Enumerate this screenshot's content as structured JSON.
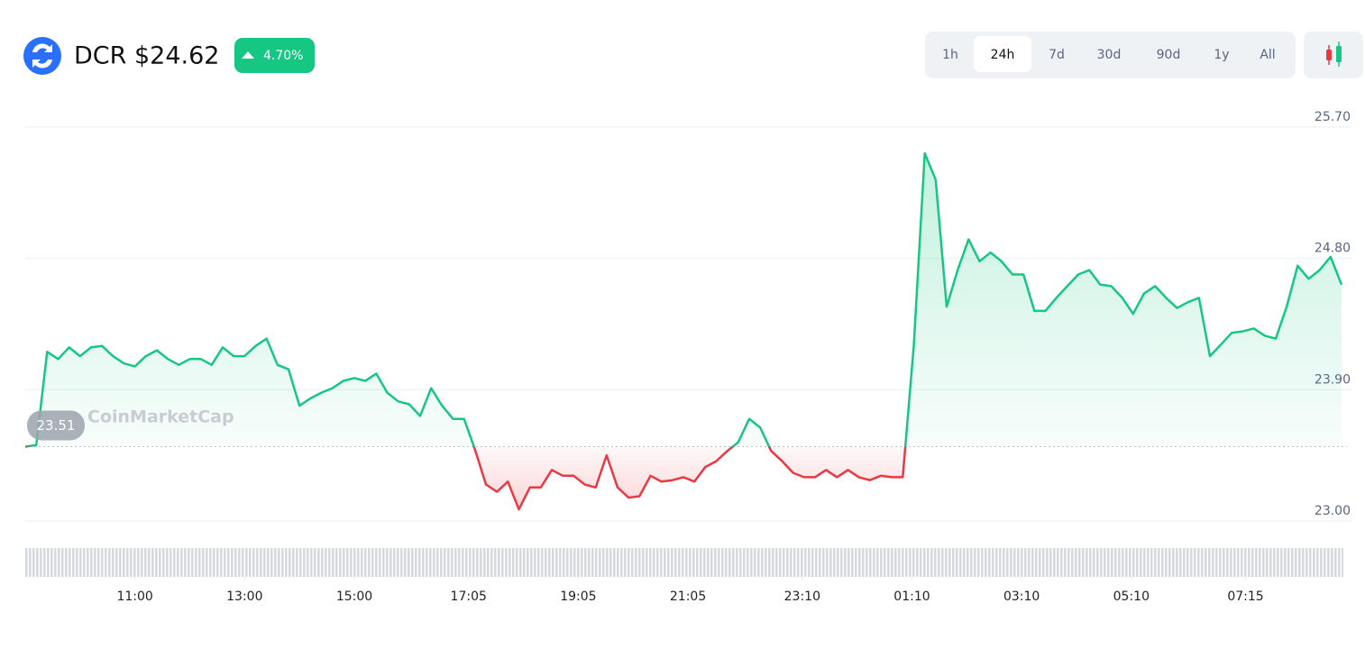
{
  "chart_data": {
    "type": "line",
    "title": "DCR $24.62",
    "change": "4.70%",
    "timeframes": [
      "1h",
      "24h",
      "7d",
      "30d",
      "90d",
      "1y",
      "All"
    ],
    "selected_timeframe": 1,
    "watermark": "CoinMarketCap",
    "reference": 23.51,
    "colors": {
      "up": "#16c784",
      "down": "#ea3943"
    },
    "xlim": [
      0,
      1440
    ],
    "x": [
      0,
      12,
      24,
      36,
      48,
      60,
      72,
      84,
      96,
      108,
      120,
      132,
      144,
      156,
      168,
      180,
      192,
      204,
      216,
      228,
      240,
      252,
      264,
      276,
      288,
      300,
      312,
      324,
      336,
      348,
      360,
      372,
      384,
      396,
      408,
      420,
      432,
      444,
      456,
      468,
      480,
      492,
      504,
      516,
      528,
      540,
      552,
      564,
      576,
      588,
      600,
      612,
      624,
      636,
      648,
      660,
      672,
      684,
      696,
      708,
      720,
      732,
      744,
      756,
      768,
      780,
      792,
      804,
      816,
      828,
      840,
      852,
      864,
      876,
      888,
      900,
      912,
      924,
      936,
      948,
      960,
      972,
      984,
      996,
      1008,
      1020,
      1032,
      1044,
      1056,
      1068,
      1080,
      1092,
      1104,
      1116,
      1128,
      1140,
      1152,
      1164,
      1176,
      1188,
      1200,
      1212,
      1224,
      1236,
      1248,
      1260,
      1272,
      1284,
      1296,
      1308,
      1320,
      1332,
      1344,
      1356,
      1368,
      1380,
      1392,
      1404,
      1416,
      1428,
      1440
    ],
    "values": [
      23.51,
      23.52,
      24.16,
      24.11,
      24.19,
      24.13,
      24.19,
      24.2,
      24.13,
      24.08,
      24.06,
      24.13,
      24.17,
      24.11,
      24.07,
      24.11,
      24.11,
      24.07,
      24.19,
      24.13,
      24.13,
      24.2,
      24.25,
      24.07,
      24.04,
      23.79,
      23.84,
      23.88,
      23.91,
      23.96,
      23.98,
      23.96,
      24.01,
      23.88,
      23.82,
      23.8,
      23.72,
      23.91,
      23.79,
      23.7,
      23.7,
      23.49,
      23.25,
      23.2,
      23.27,
      23.08,
      23.23,
      23.23,
      23.35,
      23.31,
      23.31,
      23.25,
      23.23,
      23.45,
      23.23,
      23.16,
      23.17,
      23.31,
      23.27,
      23.28,
      23.3,
      23.27,
      23.37,
      23.41,
      23.48,
      23.54,
      23.7,
      23.64,
      23.48,
      23.41,
      23.33,
      23.3,
      23.3,
      23.35,
      23.3,
      23.35,
      23.3,
      23.28,
      23.31,
      23.3,
      23.3,
      24.2,
      25.52,
      25.34,
      24.47,
      24.72,
      24.93,
      24.78,
      24.84,
      24.78,
      24.69,
      24.69,
      24.44,
      24.44,
      24.53,
      24.61,
      24.69,
      24.72,
      24.62,
      24.61,
      24.53,
      24.42,
      24.56,
      24.61,
      24.53,
      24.46,
      24.5,
      24.53,
      24.13,
      24.21,
      24.29,
      24.3,
      24.32,
      24.27,
      24.25,
      24.47,
      24.75,
      24.66,
      24.72,
      24.81,
      24.62
    ],
    "xticks": [
      {
        "value": 120,
        "label": "11:00"
      },
      {
        "value": 240,
        "label": "13:00"
      },
      {
        "value": 360,
        "label": "15:00"
      },
      {
        "value": 485,
        "label": "17:05"
      },
      {
        "value": 605,
        "label": "19:05"
      },
      {
        "value": 725,
        "label": "21:05"
      },
      {
        "value": 850,
        "label": "23:10"
      },
      {
        "value": 970,
        "label": "01:10"
      },
      {
        "value": 1090,
        "label": "03:10"
      },
      {
        "value": 1210,
        "label": "05:10"
      },
      {
        "value": 1335,
        "label": "07:15"
      }
    ],
    "ylim": [
      23.0,
      25.7
    ],
    "yticks": [
      {
        "value": 25.7,
        "label": "25.70"
      },
      {
        "value": 24.8,
        "label": "24.80"
      },
      {
        "value": 23.9,
        "label": "23.90"
      },
      {
        "value": 23.0,
        "label": "23.00"
      }
    ],
    "grid": true
  }
}
